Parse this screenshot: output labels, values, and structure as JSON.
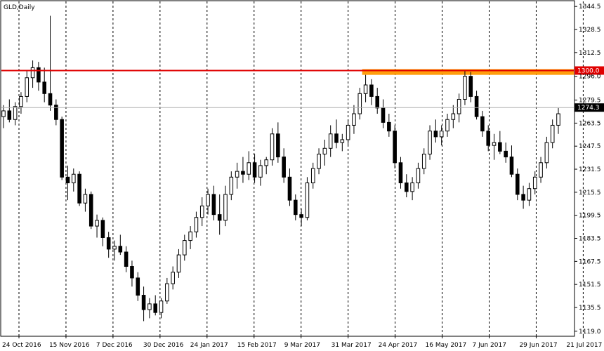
{
  "chart_data": {
    "type": "candlestick",
    "title": "GLD,Daily",
    "y_ticks": [
      "1344.5",
      "1328.5",
      "1312.5",
      "1296.0",
      "1279.5",
      "1263.5",
      "1247.5",
      "1231.5",
      "1215.5",
      "1199.5",
      "1183.5",
      "1167.5",
      "1151.5",
      "1135.5",
      "1119.0"
    ],
    "x_ticks": [
      "24 Oct 2016",
      "15 Nov 2016",
      "7 Dec 2016",
      "30 Dec 2016",
      "24 Jan 2017",
      "15 Feb 2017",
      "9 Mar 2017",
      "31 Mar 2017",
      "24 Apr 2017",
      "16 May 2017",
      "7 Jun 2017",
      "29 Jun 2017",
      "21 Jul 2017"
    ],
    "ylim": [
      1116,
      1348
    ],
    "resistance_level": 1300.0,
    "resistance_label": "1300.0",
    "current_price": 1274.3,
    "current_label": "1274.3",
    "resistance_zone": {
      "from_date": "31 Mar 2017",
      "low": 1297,
      "high": 1301
    },
    "ohlc": [
      {
        "o": 1268,
        "h": 1276,
        "l": 1260,
        "c": 1272
      },
      {
        "o": 1272,
        "h": 1280,
        "l": 1264,
        "c": 1266
      },
      {
        "o": 1266,
        "h": 1278,
        "l": 1262,
        "c": 1275
      },
      {
        "o": 1275,
        "h": 1285,
        "l": 1270,
        "c": 1282
      },
      {
        "o": 1282,
        "h": 1300,
        "l": 1278,
        "c": 1295
      },
      {
        "o": 1295,
        "h": 1307,
        "l": 1288,
        "c": 1302
      },
      {
        "o": 1302,
        "h": 1306,
        "l": 1286,
        "c": 1292
      },
      {
        "o": 1292,
        "h": 1302,
        "l": 1278,
        "c": 1284
      },
      {
        "o": 1284,
        "h": 1338,
        "l": 1272,
        "c": 1276
      },
      {
        "o": 1276,
        "h": 1280,
        "l": 1262,
        "c": 1266
      },
      {
        "o": 1266,
        "h": 1268,
        "l": 1224,
        "c": 1226
      },
      {
        "o": 1226,
        "h": 1234,
        "l": 1210,
        "c": 1222
      },
      {
        "o": 1222,
        "h": 1232,
        "l": 1216,
        "c": 1228
      },
      {
        "o": 1228,
        "h": 1230,
        "l": 1206,
        "c": 1208
      },
      {
        "o": 1208,
        "h": 1218,
        "l": 1202,
        "c": 1214
      },
      {
        "o": 1214,
        "h": 1216,
        "l": 1190,
        "c": 1192
      },
      {
        "o": 1192,
        "h": 1200,
        "l": 1184,
        "c": 1196
      },
      {
        "o": 1196,
        "h": 1198,
        "l": 1178,
        "c": 1184
      },
      {
        "o": 1184,
        "h": 1188,
        "l": 1170,
        "c": 1176
      },
      {
        "o": 1176,
        "h": 1182,
        "l": 1168,
        "c": 1178
      },
      {
        "o": 1178,
        "h": 1186,
        "l": 1172,
        "c": 1174
      },
      {
        "o": 1174,
        "h": 1178,
        "l": 1160,
        "c": 1164
      },
      {
        "o": 1164,
        "h": 1168,
        "l": 1150,
        "c": 1156
      },
      {
        "o": 1156,
        "h": 1160,
        "l": 1140,
        "c": 1144
      },
      {
        "o": 1144,
        "h": 1150,
        "l": 1126,
        "c": 1134
      },
      {
        "o": 1134,
        "h": 1142,
        "l": 1128,
        "c": 1138
      },
      {
        "o": 1138,
        "h": 1144,
        "l": 1130,
        "c": 1132
      },
      {
        "o": 1132,
        "h": 1142,
        "l": 1128,
        "c": 1140
      },
      {
        "o": 1140,
        "h": 1156,
        "l": 1138,
        "c": 1152
      },
      {
        "o": 1152,
        "h": 1164,
        "l": 1148,
        "c": 1160
      },
      {
        "o": 1160,
        "h": 1176,
        "l": 1156,
        "c": 1172
      },
      {
        "o": 1172,
        "h": 1186,
        "l": 1168,
        "c": 1182
      },
      {
        "o": 1182,
        "h": 1192,
        "l": 1176,
        "c": 1188
      },
      {
        "o": 1188,
        "h": 1202,
        "l": 1184,
        "c": 1198
      },
      {
        "o": 1198,
        "h": 1212,
        "l": 1192,
        "c": 1206
      },
      {
        "o": 1206,
        "h": 1218,
        "l": 1200,
        "c": 1214
      },
      {
        "o": 1214,
        "h": 1220,
        "l": 1196,
        "c": 1200
      },
      {
        "o": 1200,
        "h": 1214,
        "l": 1186,
        "c": 1196
      },
      {
        "o": 1196,
        "h": 1220,
        "l": 1192,
        "c": 1214
      },
      {
        "o": 1214,
        "h": 1230,
        "l": 1210,
        "c": 1226
      },
      {
        "o": 1226,
        "h": 1236,
        "l": 1218,
        "c": 1230
      },
      {
        "o": 1230,
        "h": 1240,
        "l": 1222,
        "c": 1228
      },
      {
        "o": 1228,
        "h": 1244,
        "l": 1224,
        "c": 1236
      },
      {
        "o": 1236,
        "h": 1242,
        "l": 1222,
        "c": 1226
      },
      {
        "o": 1226,
        "h": 1238,
        "l": 1220,
        "c": 1234
      },
      {
        "o": 1234,
        "h": 1240,
        "l": 1228,
        "c": 1238
      },
      {
        "o": 1238,
        "h": 1260,
        "l": 1234,
        "c": 1256
      },
      {
        "o": 1256,
        "h": 1264,
        "l": 1236,
        "c": 1240
      },
      {
        "o": 1240,
        "h": 1246,
        "l": 1222,
        "c": 1226
      },
      {
        "o": 1226,
        "h": 1232,
        "l": 1206,
        "c": 1210
      },
      {
        "o": 1210,
        "h": 1214,
        "l": 1196,
        "c": 1200
      },
      {
        "o": 1200,
        "h": 1204,
        "l": 1192,
        "c": 1198
      },
      {
        "o": 1198,
        "h": 1226,
        "l": 1196,
        "c": 1222
      },
      {
        "o": 1222,
        "h": 1236,
        "l": 1218,
        "c": 1232
      },
      {
        "o": 1232,
        "h": 1246,
        "l": 1228,
        "c": 1242
      },
      {
        "o": 1242,
        "h": 1252,
        "l": 1234,
        "c": 1246
      },
      {
        "o": 1246,
        "h": 1262,
        "l": 1240,
        "c": 1256
      },
      {
        "o": 1256,
        "h": 1266,
        "l": 1246,
        "c": 1250
      },
      {
        "o": 1250,
        "h": 1256,
        "l": 1244,
        "c": 1252
      },
      {
        "o": 1252,
        "h": 1266,
        "l": 1248,
        "c": 1262
      },
      {
        "o": 1262,
        "h": 1276,
        "l": 1256,
        "c": 1270
      },
      {
        "o": 1270,
        "h": 1288,
        "l": 1266,
        "c": 1284
      },
      {
        "o": 1284,
        "h": 1297,
        "l": 1278,
        "c": 1290
      },
      {
        "o": 1290,
        "h": 1294,
        "l": 1276,
        "c": 1282
      },
      {
        "o": 1282,
        "h": 1288,
        "l": 1270,
        "c": 1274
      },
      {
        "o": 1274,
        "h": 1280,
        "l": 1260,
        "c": 1264
      },
      {
        "o": 1264,
        "h": 1270,
        "l": 1254,
        "c": 1258
      },
      {
        "o": 1258,
        "h": 1262,
        "l": 1232,
        "c": 1236
      },
      {
        "o": 1236,
        "h": 1240,
        "l": 1218,
        "c": 1222
      },
      {
        "o": 1222,
        "h": 1228,
        "l": 1212,
        "c": 1216
      },
      {
        "o": 1216,
        "h": 1226,
        "l": 1210,
        "c": 1222
      },
      {
        "o": 1222,
        "h": 1236,
        "l": 1218,
        "c": 1232
      },
      {
        "o": 1232,
        "h": 1246,
        "l": 1228,
        "c": 1242
      },
      {
        "o": 1242,
        "h": 1262,
        "l": 1238,
        "c": 1258
      },
      {
        "o": 1258,
        "h": 1266,
        "l": 1250,
        "c": 1254
      },
      {
        "o": 1254,
        "h": 1262,
        "l": 1248,
        "c": 1258
      },
      {
        "o": 1258,
        "h": 1270,
        "l": 1254,
        "c": 1266
      },
      {
        "o": 1266,
        "h": 1276,
        "l": 1260,
        "c": 1270
      },
      {
        "o": 1270,
        "h": 1284,
        "l": 1264,
        "c": 1280
      },
      {
        "o": 1280,
        "h": 1300,
        "l": 1276,
        "c": 1296
      },
      {
        "o": 1296,
        "h": 1299,
        "l": 1278,
        "c": 1282
      },
      {
        "o": 1282,
        "h": 1286,
        "l": 1266,
        "c": 1268
      },
      {
        "o": 1268,
        "h": 1272,
        "l": 1254,
        "c": 1258
      },
      {
        "o": 1258,
        "h": 1262,
        "l": 1244,
        "c": 1248
      },
      {
        "o": 1248,
        "h": 1256,
        "l": 1238,
        "c": 1250
      },
      {
        "o": 1250,
        "h": 1258,
        "l": 1242,
        "c": 1244
      },
      {
        "o": 1244,
        "h": 1250,
        "l": 1236,
        "c": 1240
      },
      {
        "o": 1240,
        "h": 1248,
        "l": 1226,
        "c": 1228
      },
      {
        "o": 1228,
        "h": 1232,
        "l": 1210,
        "c": 1214
      },
      {
        "o": 1214,
        "h": 1220,
        "l": 1204,
        "c": 1210
      },
      {
        "o": 1210,
        "h": 1222,
        "l": 1206,
        "c": 1218
      },
      {
        "o": 1218,
        "h": 1230,
        "l": 1214,
        "c": 1226
      },
      {
        "o": 1226,
        "h": 1240,
        "l": 1222,
        "c": 1236
      },
      {
        "o": 1236,
        "h": 1254,
        "l": 1232,
        "c": 1250
      },
      {
        "o": 1250,
        "h": 1266,
        "l": 1246,
        "c": 1262
      },
      {
        "o": 1262,
        "h": 1274,
        "l": 1256,
        "c": 1270
      }
    ]
  }
}
